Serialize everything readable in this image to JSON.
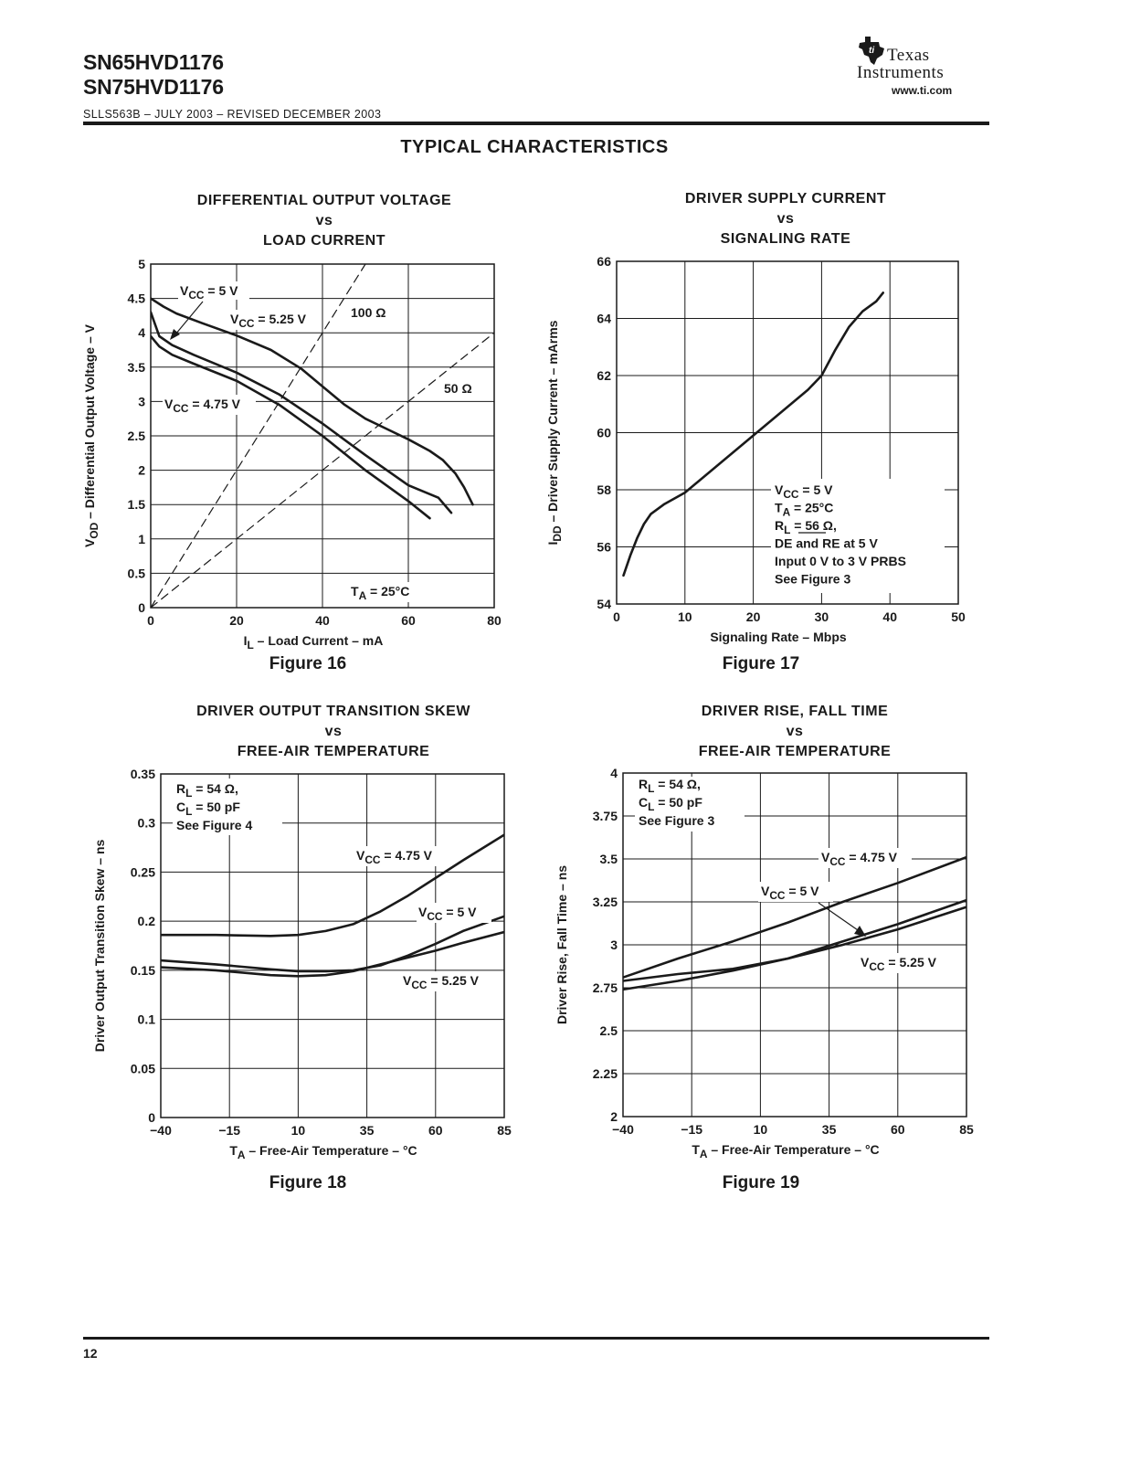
{
  "header": {
    "part_numbers": [
      "SN65HVD1176",
      "SN75HVD1176"
    ],
    "doc_ref": "SLLS563B – JULY 2003 – REVISED DECEMBER 2003",
    "logo": {
      "word1": "Texas",
      "word2": "Instruments",
      "url": "www.ti.com",
      "icon": "ti-state-logo-icon"
    }
  },
  "section_title": "TYPICAL CHARACTERISTICS",
  "footer": {
    "page_number": "12"
  },
  "chart_data": [
    {
      "type": "line",
      "figure_label": "Figure 16",
      "title_lines": [
        "DIFFERENTIAL OUTPUT VOLTAGE",
        "vs",
        "LOAD CURRENT"
      ],
      "xlabel": "I_L – Load Current – mA",
      "ylabel": "V_OD – Differential Output Voltage – V",
      "xlim": [
        0,
        80
      ],
      "ylim": [
        0,
        5
      ],
      "xticks": [
        "0",
        "20",
        "40",
        "60",
        "80"
      ],
      "yticks": [
        "0",
        "0.5",
        "1",
        "1.5",
        "2",
        "2.5",
        "3",
        "3.5",
        "4",
        "4.5",
        "5"
      ],
      "grid": true,
      "annotation": "T_A = 25°C",
      "series": [
        {
          "name": "V_CC = 5.25 V",
          "x": [
            0,
            3,
            6,
            12,
            20,
            28,
            35,
            40,
            45,
            50,
            55,
            60,
            65,
            68,
            71,
            73,
            75
          ],
          "y": [
            4.5,
            4.38,
            4.28,
            4.14,
            3.96,
            3.75,
            3.48,
            3.22,
            2.96,
            2.75,
            2.6,
            2.45,
            2.28,
            2.15,
            1.95,
            1.75,
            1.5
          ]
        },
        {
          "name": "V_CC = 5 V",
          "x": [
            0,
            2,
            5,
            10,
            20,
            30,
            40,
            50,
            60,
            67,
            70
          ],
          "y": [
            4.3,
            3.95,
            3.82,
            3.68,
            3.42,
            3.1,
            2.68,
            2.22,
            1.78,
            1.6,
            1.38
          ]
        },
        {
          "name": "V_CC = 4.75 V",
          "x": [
            0,
            2,
            5,
            10,
            20,
            30,
            40,
            50,
            60,
            65
          ],
          "y": [
            3.95,
            3.8,
            3.68,
            3.55,
            3.3,
            2.95,
            2.5,
            2.0,
            1.55,
            1.3
          ]
        },
        {
          "name": "100 Ω",
          "style": "dashed",
          "x": [
            0,
            50
          ],
          "y": [
            0,
            5
          ]
        },
        {
          "name": "50 Ω",
          "style": "dashed",
          "x": [
            0,
            80
          ],
          "y": [
            0,
            4
          ]
        }
      ],
      "labels": [
        "V_CC = 5 V",
        "V_CC = 5.25 V",
        "V_CC = 4.75 V",
        "100 Ω",
        "50 Ω"
      ]
    },
    {
      "type": "line",
      "figure_label": "Figure 17",
      "title_lines": [
        "DRIVER SUPPLY CURRENT",
        "vs",
        "SIGNALING RATE"
      ],
      "xlabel": "Signaling Rate – Mbps",
      "ylabel": "I_DD – Driver Supply Current – mArms",
      "xlim": [
        0,
        50
      ],
      "ylim": [
        54,
        66
      ],
      "xticks": [
        "0",
        "10",
        "20",
        "30",
        "40",
        "50"
      ],
      "yticks": [
        "54",
        "56",
        "58",
        "60",
        "62",
        "64",
        "66"
      ],
      "grid": true,
      "annotation_lines": [
        "V_CC = 5 V",
        "T_A = 25°C",
        "R_L = 56 Ω,",
        "DE and RE at 5 V",
        "Input 0 V to 3 V PRBS",
        "See Figure 3"
      ],
      "series": [
        {
          "name": "",
          "x": [
            1,
            2,
            3,
            4,
            5,
            7,
            10,
            15,
            20,
            25,
            28,
            30,
            32,
            34,
            36,
            38,
            39
          ],
          "y": [
            55.0,
            55.7,
            56.3,
            56.8,
            57.15,
            57.5,
            57.9,
            58.9,
            59.9,
            60.9,
            61.5,
            62.0,
            62.9,
            63.7,
            64.25,
            64.6,
            64.9
          ]
        }
      ]
    },
    {
      "type": "line",
      "figure_label": "Figure 18",
      "title_lines": [
        "DRIVER OUTPUT TRANSITION SKEW",
        "vs",
        "FREE-AIR TEMPERATURE"
      ],
      "xlabel": "T_A – Free-Air Temperature – °C",
      "ylabel": "Driver Output Transition Skew – ns",
      "xlim": [
        -40,
        85
      ],
      "ylim": [
        0,
        0.35
      ],
      "xticks": [
        "−40",
        "−15",
        "10",
        "35",
        "60",
        "85"
      ],
      "yticks": [
        "0",
        "0.05",
        "0.1",
        "0.15",
        "0.2",
        "0.25",
        "0.3",
        "0.35"
      ],
      "grid": true,
      "annotation_lines": [
        "R_L = 54 Ω,",
        "C_L = 50 pF",
        "See Figure 4"
      ],
      "series": [
        {
          "name": "V_CC = 4.75 V",
          "x": [
            -40,
            -20,
            0,
            10,
            20,
            30,
            40,
            50,
            60,
            70,
            85
          ],
          "y": [
            0.186,
            0.186,
            0.185,
            0.186,
            0.19,
            0.197,
            0.21,
            0.226,
            0.244,
            0.262,
            0.288
          ]
        },
        {
          "name": "V_CC = 5 V",
          "x": [
            -40,
            -20,
            0,
            10,
            20,
            30,
            40,
            50,
            60,
            70,
            85
          ],
          "y": [
            0.16,
            0.156,
            0.151,
            0.149,
            0.149,
            0.15,
            0.155,
            0.165,
            0.177,
            0.19,
            0.205
          ]
        },
        {
          "name": "V_CC = 5.25 V",
          "x": [
            -40,
            -20,
            0,
            10,
            20,
            30,
            40,
            50,
            60,
            70,
            85
          ],
          "y": [
            0.153,
            0.15,
            0.145,
            0.144,
            0.145,
            0.149,
            0.156,
            0.163,
            0.17,
            0.178,
            0.189
          ]
        }
      ]
    },
    {
      "type": "line",
      "figure_label": "Figure 19",
      "title_lines": [
        "DRIVER RISE, FALL TIME",
        "vs",
        "FREE-AIR TEMPERATURE"
      ],
      "xlabel": "T_A – Free-Air Temperature – °C",
      "ylabel": "Driver Rise, Fall Time – ns",
      "xlim": [
        -40,
        85
      ],
      "ylim": [
        2,
        4
      ],
      "xticks": [
        "−40",
        "−15",
        "10",
        "35",
        "60",
        "85"
      ],
      "yticks": [
        "2",
        "2.25",
        "2.5",
        "2.75",
        "3",
        "3.25",
        "3.5",
        "3.75",
        "4"
      ],
      "grid": true,
      "annotation_lines": [
        "R_L = 54 Ω,",
        "C_L = 50 pF",
        "See Figure 3"
      ],
      "series": [
        {
          "name": "V_CC = 4.75 V",
          "x": [
            -40,
            -20,
            0,
            20,
            40,
            60,
            85
          ],
          "y": [
            2.81,
            2.92,
            3.02,
            3.13,
            3.25,
            3.36,
            3.51
          ]
        },
        {
          "name": "V_CC = 5 V",
          "x": [
            -40,
            -20,
            0,
            20,
            40,
            60,
            85
          ],
          "y": [
            2.74,
            2.79,
            2.85,
            2.92,
            3.02,
            3.12,
            3.26
          ]
        },
        {
          "name": "V_CC = 5.25 V",
          "x": [
            -40,
            -20,
            0,
            20,
            40,
            60,
            85
          ],
          "y": [
            2.79,
            2.83,
            2.86,
            2.92,
            3.0,
            3.09,
            3.22
          ]
        }
      ]
    }
  ]
}
